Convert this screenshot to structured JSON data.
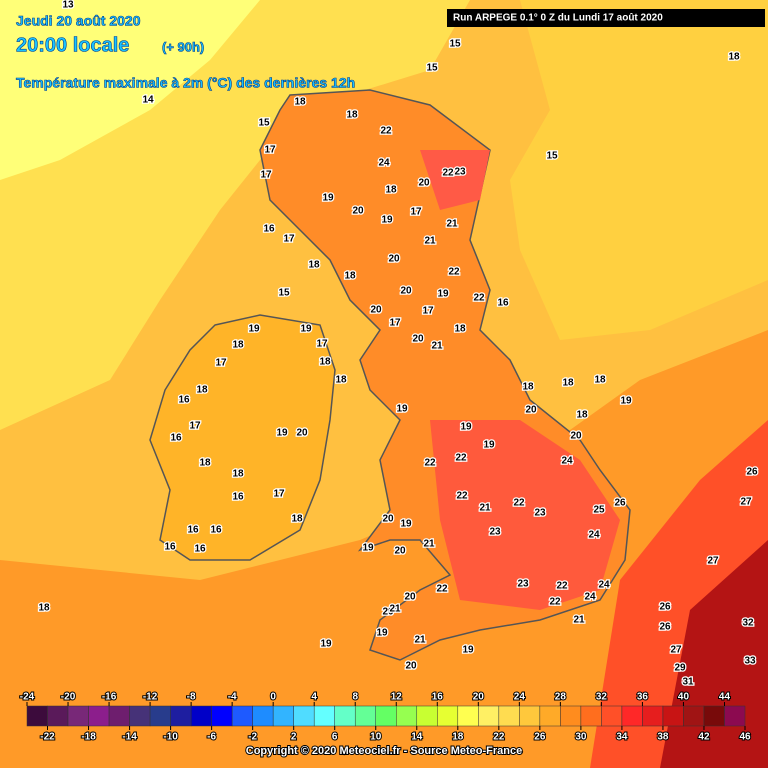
{
  "header": {
    "date": "Jeudi 20 août 2020",
    "time": "20:00 locale",
    "lead": "(+ 90h)",
    "variable": "Température maximale à 2m (°C) des dernières 12h",
    "run": "Run ARPEGE 0.1° 0 Z du Lundi 17 août 2020"
  },
  "legend": {
    "ticks": [
      -24,
      -22,
      -20,
      -18,
      -16,
      -14,
      -12,
      -10,
      -8,
      -6,
      -4,
      -2,
      0,
      2,
      4,
      6,
      8,
      10,
      12,
      14,
      16,
      18,
      20,
      22,
      24,
      26,
      28,
      30,
      32,
      34,
      36,
      38,
      40,
      42,
      44,
      46
    ],
    "colors": [
      "#3c0b3c",
      "#5a1a5a",
      "#782878",
      "#8c1e8c",
      "#6e1e6e",
      "#463278",
      "#283c8c",
      "#1e1ea0",
      "#0000c8",
      "#0000ff",
      "#1e5aff",
      "#1e8cff",
      "#32b4ff",
      "#50dcff",
      "#64ffff",
      "#64ffc8",
      "#64ff96",
      "#64ff64",
      "#96ff50",
      "#c8ff32",
      "#e6ff32",
      "#ffff50",
      "#fff064",
      "#ffdc50",
      "#ffc83c",
      "#ffaa28",
      "#ff8c1e",
      "#ff6e1e",
      "#ff5028",
      "#ff2828",
      "#e61e1e",
      "#c81414",
      "#a01414",
      "#780a0a",
      "#8c0a50",
      "#aa00aa",
      "#d200d2",
      "#ff00ff",
      "#ff80ff"
    ]
  },
  "map_labels": [
    13,
    14,
    15,
    15,
    18,
    15,
    15,
    18,
    18,
    22,
    24,
    23,
    22,
    18,
    20,
    17,
    17,
    16,
    17,
    18,
    15,
    19,
    20,
    19,
    17,
    21,
    21,
    20,
    22,
    19,
    20,
    18,
    20,
    17,
    17,
    22,
    16,
    18,
    20,
    21,
    19,
    18,
    17,
    18,
    16,
    17,
    16,
    18,
    18,
    16,
    17,
    16,
    16,
    16,
    16,
    18,
    20,
    19,
    19,
    17,
    18,
    18,
    19,
    19,
    22,
    22,
    19,
    18,
    20,
    18,
    18,
    18,
    19,
    20,
    24,
    26,
    27,
    26,
    25,
    24,
    23,
    22,
    21,
    23,
    22,
    20,
    19,
    20,
    21,
    19,
    22,
    23,
    22,
    24,
    22,
    24,
    21,
    20,
    20,
    21,
    21,
    19,
    20,
    19,
    19,
    18,
    27,
    26,
    26,
    32,
    27,
    33,
    29,
    31
  ],
  "copyright": "Copyright © 2020 Meteociel.fr - Source Meteo-France"
}
